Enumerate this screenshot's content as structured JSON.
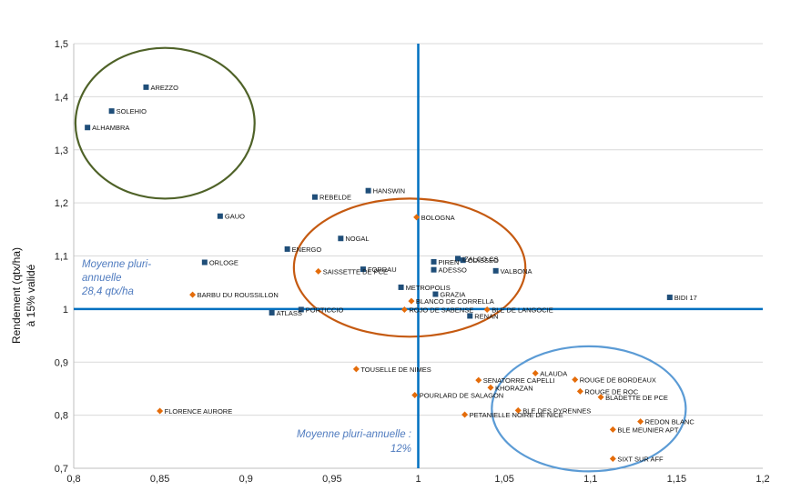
{
  "chart_data": {
    "type": "scatter",
    "title": "",
    "xlabel": "",
    "ylabel": [
      "Rendement (qtx/ha)",
      "à 15% validé"
    ],
    "xlim": [
      0.8,
      1.2
    ],
    "ylim": [
      0.7,
      1.5
    ],
    "x_ticks": [
      "0,8",
      "0,85",
      "0,9",
      "0,95",
      "1",
      "1,05",
      "1,1",
      "1,15",
      "1,2"
    ],
    "y_ticks": [
      "0,7",
      "0,8",
      "0,9",
      "1",
      "1,1",
      "1,2",
      "1,3",
      "1,4",
      "1,5"
    ],
    "grid": "horizontal",
    "reference_lines": {
      "x": 1.0,
      "y": 1.0,
      "color": "#0070c0"
    },
    "annotations": {
      "y_mean": [
        "Moyenne pluri-",
        "annuelle",
        "28,4 qtx/ha"
      ],
      "x_mean": [
        "Moyenne pluri-annuelle :",
        "12%"
      ]
    },
    "ellipse_colors": [
      "#4f6228",
      "#c55a11",
      "#5b9bd5"
    ],
    "series": [
      {
        "marker": "square",
        "color": "#1f4e79",
        "points": [
          {
            "label": "AREZZO",
            "x": 0.842,
            "y": 1.418
          },
          {
            "label": "SOLEHIO",
            "x": 0.822,
            "y": 1.373
          },
          {
            "label": "ALHAMBRA",
            "x": 0.808,
            "y": 1.342
          },
          {
            "label": "HANSWIN",
            "x": 0.971,
            "y": 1.223
          },
          {
            "label": "REBELDE",
            "x": 0.94,
            "y": 1.211
          },
          {
            "label": "GAUO",
            "x": 0.885,
            "y": 1.175
          },
          {
            "label": "NOGAL",
            "x": 0.955,
            "y": 1.133
          },
          {
            "label": "ENERGO",
            "x": 0.924,
            "y": 1.113
          },
          {
            "label": "ORLOGE",
            "x": 0.876,
            "y": 1.088
          },
          {
            "label": "IZALCO CS",
            "x": 1.023,
            "y": 1.095
          },
          {
            "label": "PIREN",
            "x": 1.009,
            "y": 1.089
          },
          {
            "label": "ODISSEO",
            "x": 1.026,
            "y": 1.092
          },
          {
            "label": "FORRAU",
            "x": 0.968,
            "y": 1.075
          },
          {
            "label": "ADESSO",
            "x": 1.009,
            "y": 1.074
          },
          {
            "label": "VALBONA",
            "x": 1.045,
            "y": 1.072
          },
          {
            "label": "METROPOLIS",
            "x": 0.99,
            "y": 1.041
          },
          {
            "label": "GRAZIA",
            "x": 1.01,
            "y": 1.028
          },
          {
            "label": "BIDI 17",
            "x": 1.146,
            "y": 1.022
          },
          {
            "label": "PORTICCIO",
            "x": 0.932,
            "y": 0.999
          },
          {
            "label": "ATLASS",
            "x": 0.915,
            "y": 0.993
          },
          {
            "label": "RENAN",
            "x": 1.03,
            "y": 0.987
          }
        ]
      },
      {
        "marker": "diamond",
        "color": "#e46c0a",
        "points": [
          {
            "label": "BOLOGNA",
            "x": 0.999,
            "y": 1.173
          },
          {
            "label": "SAISSETTE DE PCE",
            "x": 0.942,
            "y": 1.071
          },
          {
            "label": "BARBU DU ROUSSILLON",
            "x": 0.869,
            "y": 1.027
          },
          {
            "label": "BLANCO DE CORRELLA",
            "x": 0.996,
            "y": 1.015
          },
          {
            "label": "ROJO DE SABENSE",
            "x": 0.992,
            "y": 0.999
          },
          {
            "label": "BLE DE LANGOCIE",
            "x": 1.04,
            "y": 0.999
          },
          {
            "label": "TOUSELLE DE NIMES",
            "x": 0.964,
            "y": 0.887
          },
          {
            "label": "ALAUDA",
            "x": 1.068,
            "y": 0.879
          },
          {
            "label": "ROUGE DE BORDEAUX",
            "x": 1.091,
            "y": 0.867
          },
          {
            "label": "SENATORRE CAPELLI",
            "x": 1.035,
            "y": 0.866
          },
          {
            "label": "KHORAZAN",
            "x": 1.042,
            "y": 0.852
          },
          {
            "label": "ROUGE DE ROC",
            "x": 1.094,
            "y": 0.845
          },
          {
            "label": "POURLARD DE SALAGON",
            "x": 0.998,
            "y": 0.838
          },
          {
            "label": "BLADETTE DE PCE",
            "x": 1.106,
            "y": 0.834
          },
          {
            "label": "FLORENCE AURORE",
            "x": 0.85,
            "y": 0.808
          },
          {
            "label": "BLE DES PYRENNES",
            "x": 1.058,
            "y": 0.809
          },
          {
            "label": "PETANIELLE NOIRE DE NICE",
            "x": 1.027,
            "y": 0.801
          },
          {
            "label": "REDON BLANC",
            "x": 1.129,
            "y": 0.788
          },
          {
            "label": "BLE MEUNIER APT",
            "x": 1.113,
            "y": 0.773
          },
          {
            "label": "SIXT SUR AFF",
            "x": 1.113,
            "y": 0.718
          }
        ]
      }
    ]
  }
}
